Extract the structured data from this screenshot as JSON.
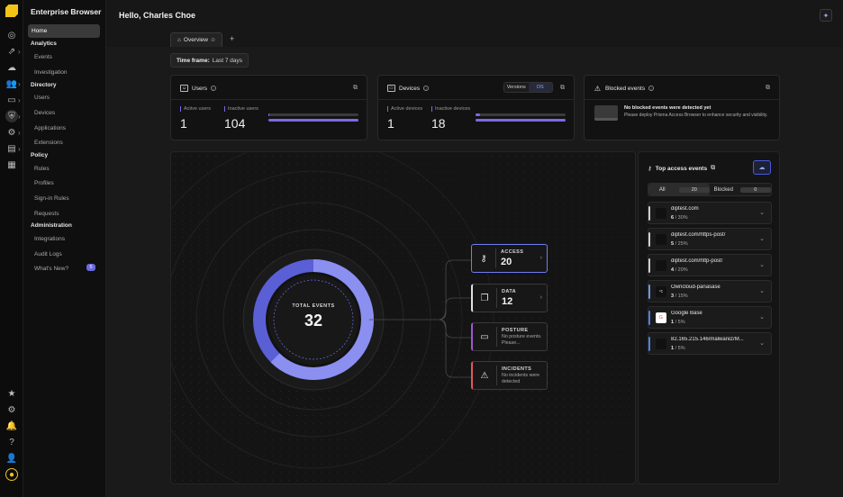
{
  "app": {
    "name": "Enterprise Browser"
  },
  "header": {
    "greeting": "Hello, Charles Choe"
  },
  "tabs": [
    {
      "label": "Overview"
    }
  ],
  "nav": {
    "home": "Home",
    "analytics": {
      "title": "Analytics",
      "items": [
        "Events",
        "Investigation"
      ]
    },
    "directory": {
      "title": "Directory",
      "items": [
        "Users",
        "Devices",
        "Applications",
        "Extensions"
      ]
    },
    "policy": {
      "title": "Policy",
      "items": [
        "Rules",
        "Profiles",
        "Sign-in Rules",
        "Requests"
      ]
    },
    "administration": {
      "title": "Administration",
      "items": [
        "Integrations",
        "Audit Logs",
        "What's New?"
      ]
    },
    "whats_new_badge": "5"
  },
  "timeframe": {
    "label": "Time frame:",
    "value": "Last 7 days"
  },
  "cards": {
    "users": {
      "title": "Users",
      "active_label": "Active users",
      "inactive_label": "Inactive users",
      "active": "1",
      "inactive": "104",
      "active_fraction": 0.01
    },
    "devices": {
      "title": "Devices",
      "active_label": "Active devices",
      "inactive_label": "Inactive devices",
      "active": "1",
      "inactive": "18",
      "active_fraction": 0.05,
      "toggle": [
        "Versions",
        "OS"
      ],
      "toggle_selected": "OS"
    },
    "blocked": {
      "title": "Blocked events",
      "line1": "No blocked events were detected yet",
      "line2": "Please deploy Prisma Access Browser to enhance security and visibility."
    }
  },
  "total_events": {
    "label": "TOTAL EVENTS",
    "value": "32"
  },
  "event_types": [
    {
      "title": "ACCESS",
      "value": "20",
      "sub": "",
      "color": "#6f7df0"
    },
    {
      "title": "DATA",
      "value": "12",
      "sub": "",
      "color": "#e0e0e0"
    },
    {
      "title": "POSTURE",
      "value": "",
      "sub": "No posture events. Please...",
      "color": "#9b59d0"
    },
    {
      "title": "INCIDENTS",
      "value": "",
      "sub": "No incidents were detected",
      "color": "#e05a5a"
    }
  ],
  "top_access": {
    "title": "Top access events",
    "filter_all": "All",
    "filter_all_count": "20",
    "filter_blocked": "Blocked",
    "filter_blocked_count": "0",
    "rows": [
      {
        "domain": "diptest.com",
        "count": "6",
        "pct": "/ 30%",
        "accent": "#cfcfcf",
        "favicon": ""
      },
      {
        "domain": "diptest.com/https-post/",
        "count": "5",
        "pct": "/ 25%",
        "accent": "#cfcfcf",
        "favicon": ""
      },
      {
        "domain": "diptest.com/http-post/",
        "count": "4",
        "pct": "/ 20%",
        "accent": "#cfcfcf",
        "favicon": ""
      },
      {
        "domain": "Owncloud-panasase",
        "count": "3",
        "pct": "/ 15%",
        "accent": "#6f96e0",
        "favicon": "ᵒc"
      },
      {
        "domain": "Google Base",
        "count": "1",
        "pct": "/ 5%",
        "accent": "#4f7fe0",
        "favicon": "G"
      },
      {
        "domain": "82.165.215.146/malwarez/M...",
        "count": "1",
        "pct": "/ 5%",
        "accent": "#4f7fe0",
        "favicon": ""
      }
    ]
  }
}
